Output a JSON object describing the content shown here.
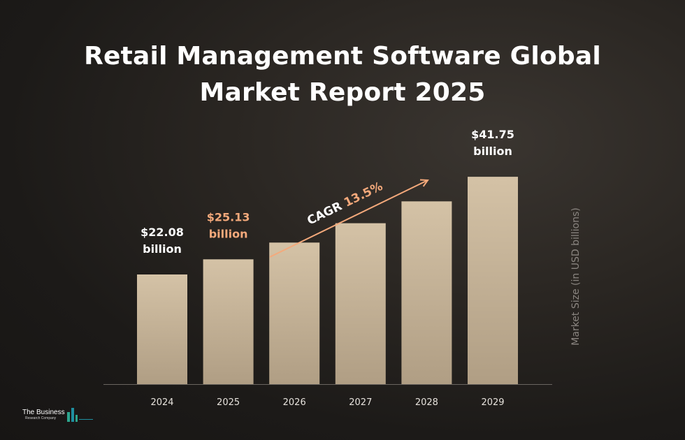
{
  "chart_data": {
    "type": "bar",
    "title_lines": [
      "Retail Management Software Global",
      "Market Report 2025"
    ],
    "categories": [
      "2024",
      "2025",
      "2026",
      "2027",
      "2028",
      "2029"
    ],
    "values": [
      22.08,
      25.13,
      28.5,
      32.4,
      36.8,
      41.75
    ],
    "labeled_points": [
      {
        "index": 0,
        "lines": [
          "$22.08",
          "billion"
        ],
        "color": "#ffffff"
      },
      {
        "index": 1,
        "lines": [
          "$25.13",
          "billion"
        ],
        "color": "#f4a97b"
      },
      {
        "index": 5,
        "lines": [
          "$41.75",
          "billion"
        ],
        "color": "#ffffff"
      }
    ],
    "annotation": {
      "prefix": "CAGR ",
      "value": "13.5%",
      "prefix_color": "#ffffff",
      "value_color": "#f4a97b"
    },
    "ylabel": "Market Size (in USD billions)",
    "xlabel": "",
    "ylim": [
      0,
      45
    ],
    "grid": false,
    "colors": {
      "bar_top": "#d4c2a6",
      "bar_bottom": "#b09e84",
      "arrow": "#f4a97b",
      "axis": "#6a6560",
      "tick": "#e6e2dc",
      "ylabel": "#8a8580"
    }
  },
  "logo": {
    "name": "The Business",
    "subtitle": "Research Company"
  }
}
